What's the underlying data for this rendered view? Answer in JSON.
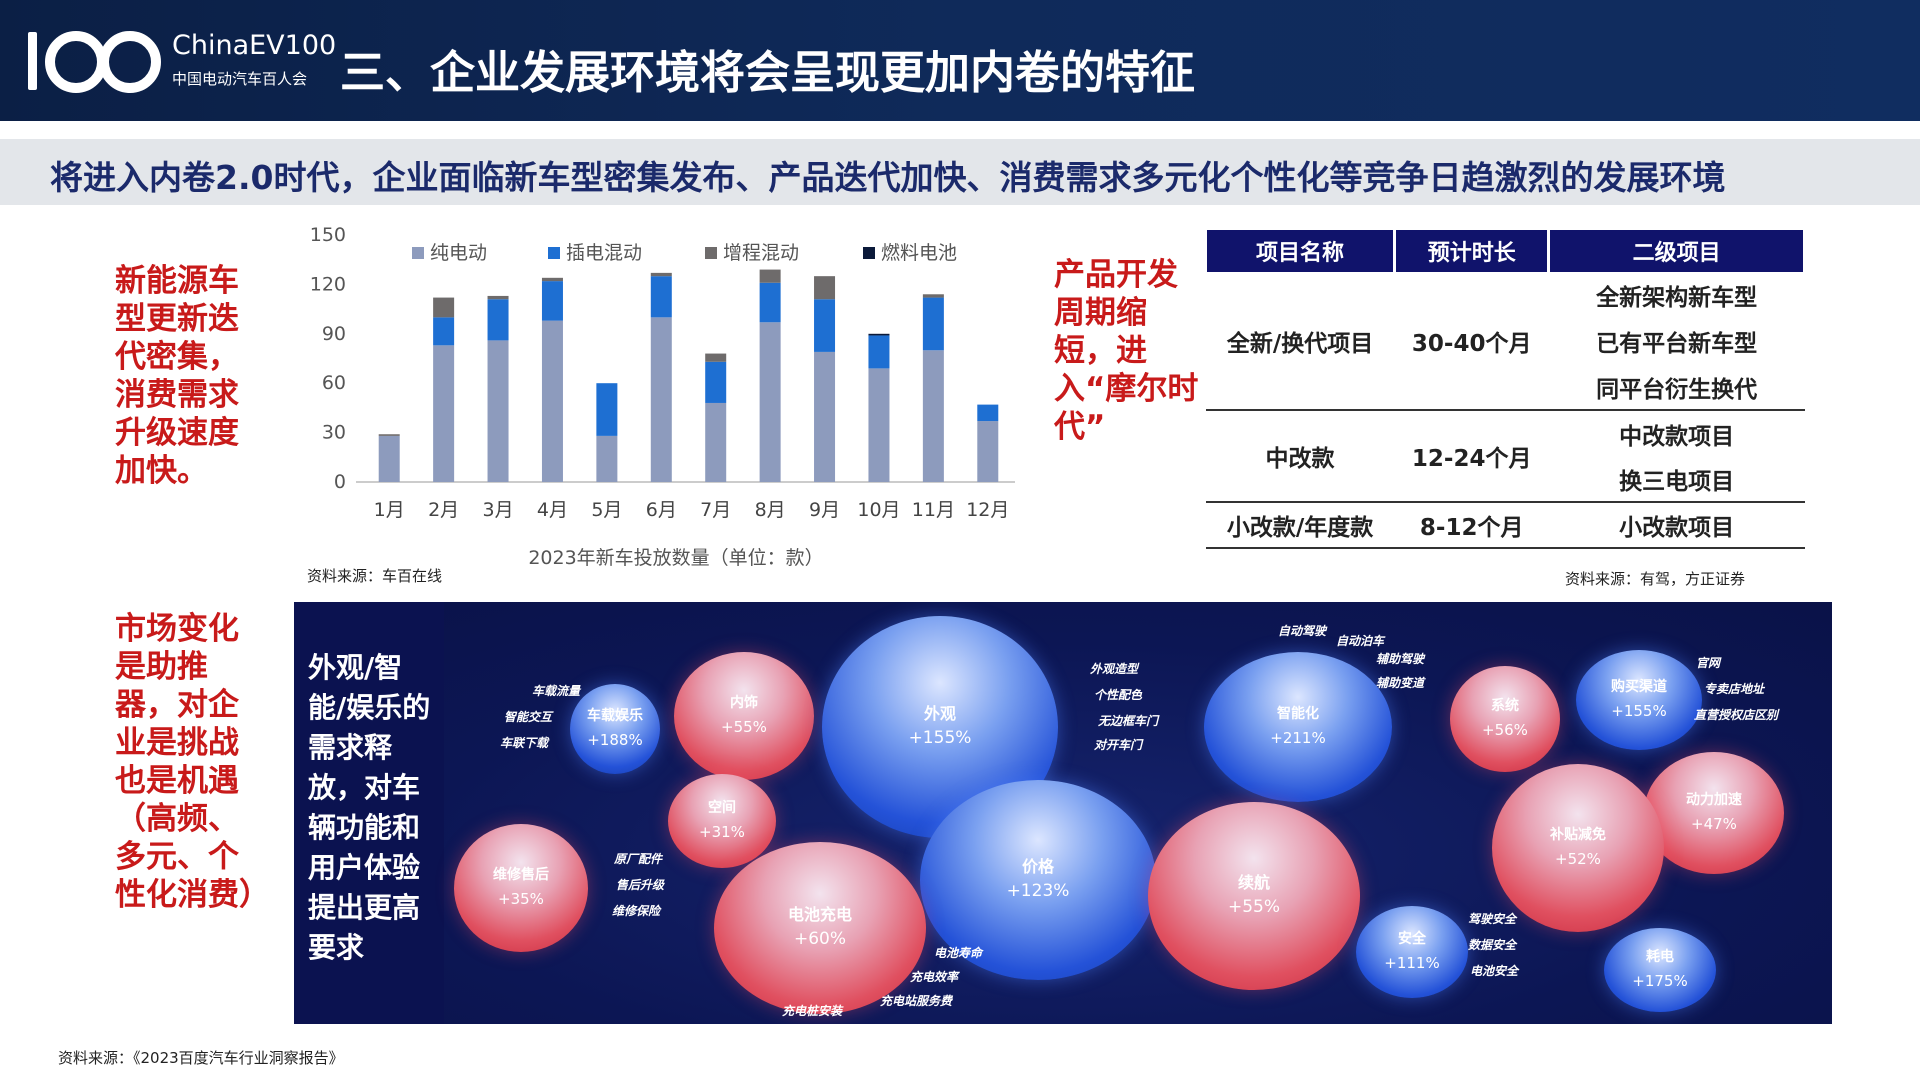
{
  "header": {
    "logo_main": "ChinaEV100",
    "logo_sub": "中国电动汽车百人会",
    "title": "三、企业发展环境将会呈现更加内卷的特征"
  },
  "subtitle": "将进入内卷2.0时代，企业面临新车型密集发布、产品迭代加快、消费需求多元化个性化等竞争日趋激烈的发展环境",
  "notes": {
    "left_top": "新能源车型更新迭代密集，消费需求升级速度加快。",
    "left_bottom": "市场变化是助推器，对企业是挑战也是机遇（高频、多元、个性化消费）",
    "middle": "产品开发周期缩短，进入“摩尔时代”"
  },
  "colors": {
    "header_bg": "#0f2a5a",
    "subtitle_text": "#1b2a6b",
    "note_red": "#c81a1a",
    "bev": "#8d9bbd",
    "phev": "#1e6fd2",
    "erev": "#6e6b6b",
    "fcev": "#0b1a3a",
    "table_header": "#10136b"
  },
  "chart_data": {
    "type": "bar",
    "stacked": true,
    "categories": [
      "1月",
      "2月",
      "3月",
      "4月",
      "5月",
      "6月",
      "7月",
      "8月",
      "9月",
      "10月",
      "11月",
      "12月"
    ],
    "series": [
      {
        "name": "纯电动",
        "values": [
          28,
          83,
          86,
          98,
          28,
          100,
          48,
          97,
          79,
          69,
          80,
          37
        ]
      },
      {
        "name": "插电混动",
        "values": [
          0,
          17,
          25,
          24,
          32,
          25,
          25,
          24,
          32,
          20,
          32,
          10
        ]
      },
      {
        "name": "增程混动",
        "values": [
          1,
          12,
          2,
          2,
          0,
          2,
          5,
          8,
          14,
          0,
          2,
          0
        ]
      },
      {
        "name": "燃料电池",
        "values": [
          0,
          0,
          0,
          0,
          0,
          0,
          0,
          0,
          0,
          1,
          0,
          0
        ]
      }
    ],
    "xlabel": "2023年新车投放数量（单位：款）",
    "ylabel": "",
    "ylim": [
      0,
      150
    ],
    "yticks": [
      0,
      30,
      60,
      90,
      120,
      150
    ],
    "legend": "top",
    "grid": false
  },
  "chart_source": "资料来源：车百在线",
  "table": {
    "headers": [
      "项目名称",
      "预计时长",
      "二级项目"
    ],
    "groups": [
      {
        "name": "全新/换代项目",
        "duration": "30-40个月",
        "items": [
          "全新架构新车型",
          "已有平台新车型",
          "同平台衍生换代"
        ]
      },
      {
        "name": "中改款",
        "duration": "12-24个月",
        "items": [
          "中改款项目",
          "换三电项目"
        ]
      },
      {
        "name": "小改款/年度款",
        "duration": "8-12个月",
        "items": [
          "小改款项目"
        ]
      }
    ],
    "source": "资料来源：有驾，方正证券"
  },
  "bubble_panel": {
    "text": "外观/智能/娱乐的需求释放，对车辆功能和用户体验提出更高要求",
    "bubbles": [
      {
        "name": "车载娱乐",
        "pct": "+188%",
        "color": "blue"
      },
      {
        "name": "内饰",
        "pct": "+55%",
        "color": "red"
      },
      {
        "name": "外观",
        "pct": "+155%",
        "color": "blue"
      },
      {
        "name": "智能化",
        "pct": "+211%",
        "color": "blue"
      },
      {
        "name": "系统",
        "pct": "+56%",
        "color": "red"
      },
      {
        "name": "购买渠道",
        "pct": "+155%",
        "color": "blue"
      },
      {
        "name": "空间",
        "pct": "+31%",
        "color": "red"
      },
      {
        "name": "动力加速",
        "pct": "+47%",
        "color": "red"
      },
      {
        "name": "补贴减免",
        "pct": "+52%",
        "color": "red"
      },
      {
        "name": "维修售后",
        "pct": "+35%",
        "color": "red"
      },
      {
        "name": "价格",
        "pct": "+123%",
        "color": "blue"
      },
      {
        "name": "续航",
        "pct": "+55%",
        "color": "red"
      },
      {
        "name": "电池充电",
        "pct": "+60%",
        "color": "red"
      },
      {
        "name": "安全",
        "pct": "+111%",
        "color": "blue"
      },
      {
        "name": "耗电",
        "pct": "+175%",
        "color": "blue"
      }
    ],
    "tags": {
      "ent": [
        "车载流量",
        "智能交互",
        "车联下载"
      ],
      "look": [
        "外观造型",
        "个性配色",
        "无边框车门",
        "对开车门"
      ],
      "smart": [
        "自动驾驶",
        "自动泊车",
        "辅助驾驶",
        "辅助变道"
      ],
      "channel": [
        "官网",
        "专卖店地址",
        "直营授权店区别"
      ],
      "after": [
        "原厂配件",
        "售后升级",
        "维修保险"
      ],
      "battery": [
        "电池寿命",
        "充电效率",
        "充电站服务费",
        "充电桩安装"
      ],
      "safety": [
        "驾驶安全",
        "数据安全",
        "电池安全"
      ]
    }
  },
  "footer_source": "资料来源：《2023百度汽车行业洞察报告》"
}
